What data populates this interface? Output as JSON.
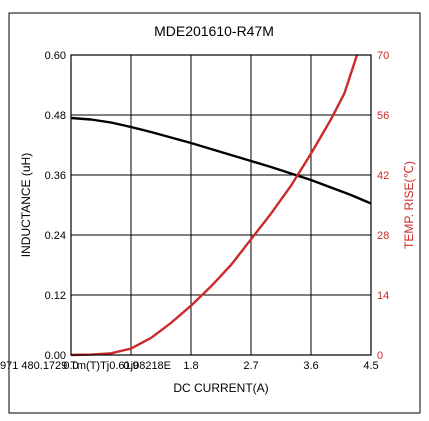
{
  "chart_data": {
    "type": "line",
    "title": "MDE201610-R47M",
    "xlabel": "DC CURRENT(A)",
    "ylabel": "INDUCTANCE (uH)",
    "y2label": "TEMP. RISE(℃)",
    "xlim": [
      0,
      4.5
    ],
    "ylim": [
      0,
      0.6
    ],
    "y2lim": [
      0,
      70
    ],
    "x_ticks": [
      "0.0",
      "0.9",
      "1.8",
      "2.7",
      "3.6",
      "4.5"
    ],
    "y_ticks": [
      "0.00",
      "0.12",
      "0.24",
      "0.36",
      "0.48",
      "0.60"
    ],
    "y2_ticks": [
      "0",
      "14",
      "28",
      "42",
      "56",
      "70"
    ],
    "grid": true,
    "colors": {
      "inductance": "#000000",
      "temp_rise": "#cc2a2a",
      "secondary_axis": "#cc2a2a",
      "frame": "#000000"
    },
    "series": [
      {
        "axis": "left",
        "color": "#000000",
        "x": [
          0,
          0.3,
          0.6,
          0.9,
          1.2,
          1.5,
          1.8,
          2.1,
          2.4,
          2.7,
          3.0,
          3.3,
          3.6,
          3.9,
          4.2,
          4.5
        ],
        "y": [
          0.474,
          0.471,
          0.465,
          0.456,
          0.446,
          0.435,
          0.424,
          0.412,
          0.4,
          0.388,
          0.376,
          0.363,
          0.35,
          0.335,
          0.32,
          0.303
        ]
      },
      {
        "axis": "right",
        "color": "#cc2a2a",
        "x": [
          0,
          0.3,
          0.6,
          0.9,
          1.2,
          1.5,
          1.8,
          2.1,
          2.4,
          2.7,
          3.0,
          3.3,
          3.6,
          3.9,
          4.1,
          4.29
        ],
        "y": [
          0,
          0.1,
          0.4,
          1.5,
          4,
          7.5,
          11.5,
          16,
          21,
          27,
          33,
          39.5,
          47,
          55,
          61,
          70
        ]
      }
    ]
  },
  "overlay_text": "971 480.1729 Tm(T)Tj0.61j08218E"
}
